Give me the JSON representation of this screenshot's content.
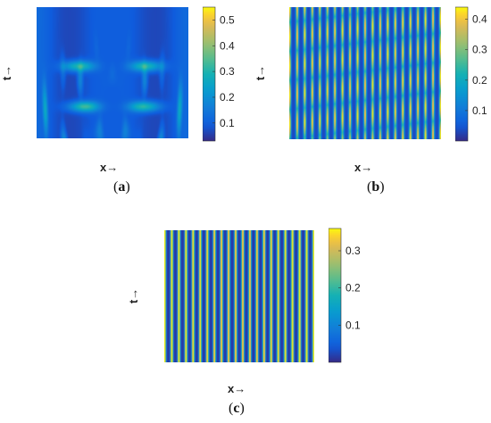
{
  "chart_data": [
    {
      "type": "heatmap",
      "panel_label": "a",
      "xlabel": "x→",
      "ylabel": "t→",
      "colorbar": {
        "min": 0.03,
        "max": 0.55,
        "ticks": [
          0.1,
          0.2,
          0.3,
          0.4,
          0.5
        ],
        "tick_labels": [
          "0.1",
          "0.2",
          "0.3",
          "0.4",
          "0.5"
        ]
      },
      "colormap": "parula",
      "pattern": "interfering-wavefronts"
    },
    {
      "type": "heatmap",
      "panel_label": "b",
      "xlabel": "x→",
      "ylabel": "t→",
      "colorbar": {
        "min": 0.0,
        "max": 0.44,
        "ticks": [
          0.1,
          0.2,
          0.3,
          0.4
        ],
        "tick_labels": [
          "0.1",
          "0.2",
          "0.3",
          "0.4"
        ]
      },
      "colormap": "parula",
      "pattern": "vertical-stripes-modulated",
      "stripes": 20
    },
    {
      "type": "heatmap",
      "panel_label": "c",
      "xlabel": "x→",
      "ylabel": "t→",
      "colorbar": {
        "min": 0.0,
        "max": 0.36,
        "ticks": [
          0.1,
          0.2,
          0.3
        ],
        "tick_labels": [
          "0.1",
          "0.2",
          "0.3"
        ]
      },
      "colormap": "parula",
      "pattern": "vertical-stripes",
      "stripes": 21
    }
  ]
}
